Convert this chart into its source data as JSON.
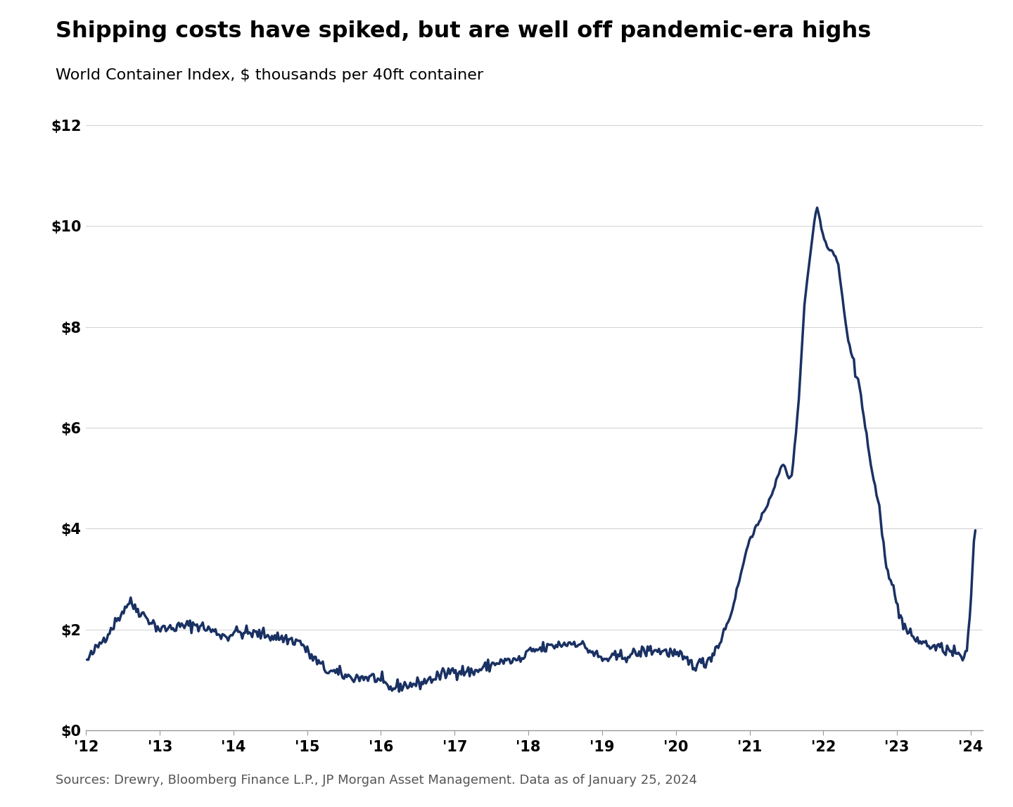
{
  "title": "Shipping costs have spiked, but are well off pandemic-era highs",
  "subtitle": "World Container Index, $ thousands per 40ft container",
  "source_text": "Sources: Drewry, Bloomberg Finance L.P., JP Morgan Asset Management. Data as of January 25, 2024",
  "line_color": "#1a3163",
  "background_color": "#ffffff",
  "ylim": [
    0,
    12
  ],
  "yticks": [
    0,
    2,
    4,
    6,
    8,
    10,
    12
  ],
  "ytick_labels": [
    "$0",
    "$2",
    "$4",
    "$6",
    "$8",
    "$10",
    "$12"
  ],
  "xtick_labels": [
    "'12",
    "'13",
    "'14",
    "'15",
    "'16",
    "'17",
    "'18",
    "'19",
    "'20",
    "'21",
    "'22",
    "'23",
    "'24"
  ],
  "title_fontsize": 23,
  "subtitle_fontsize": 16,
  "tick_fontsize": 15,
  "source_fontsize": 13,
  "line_width": 2.5
}
